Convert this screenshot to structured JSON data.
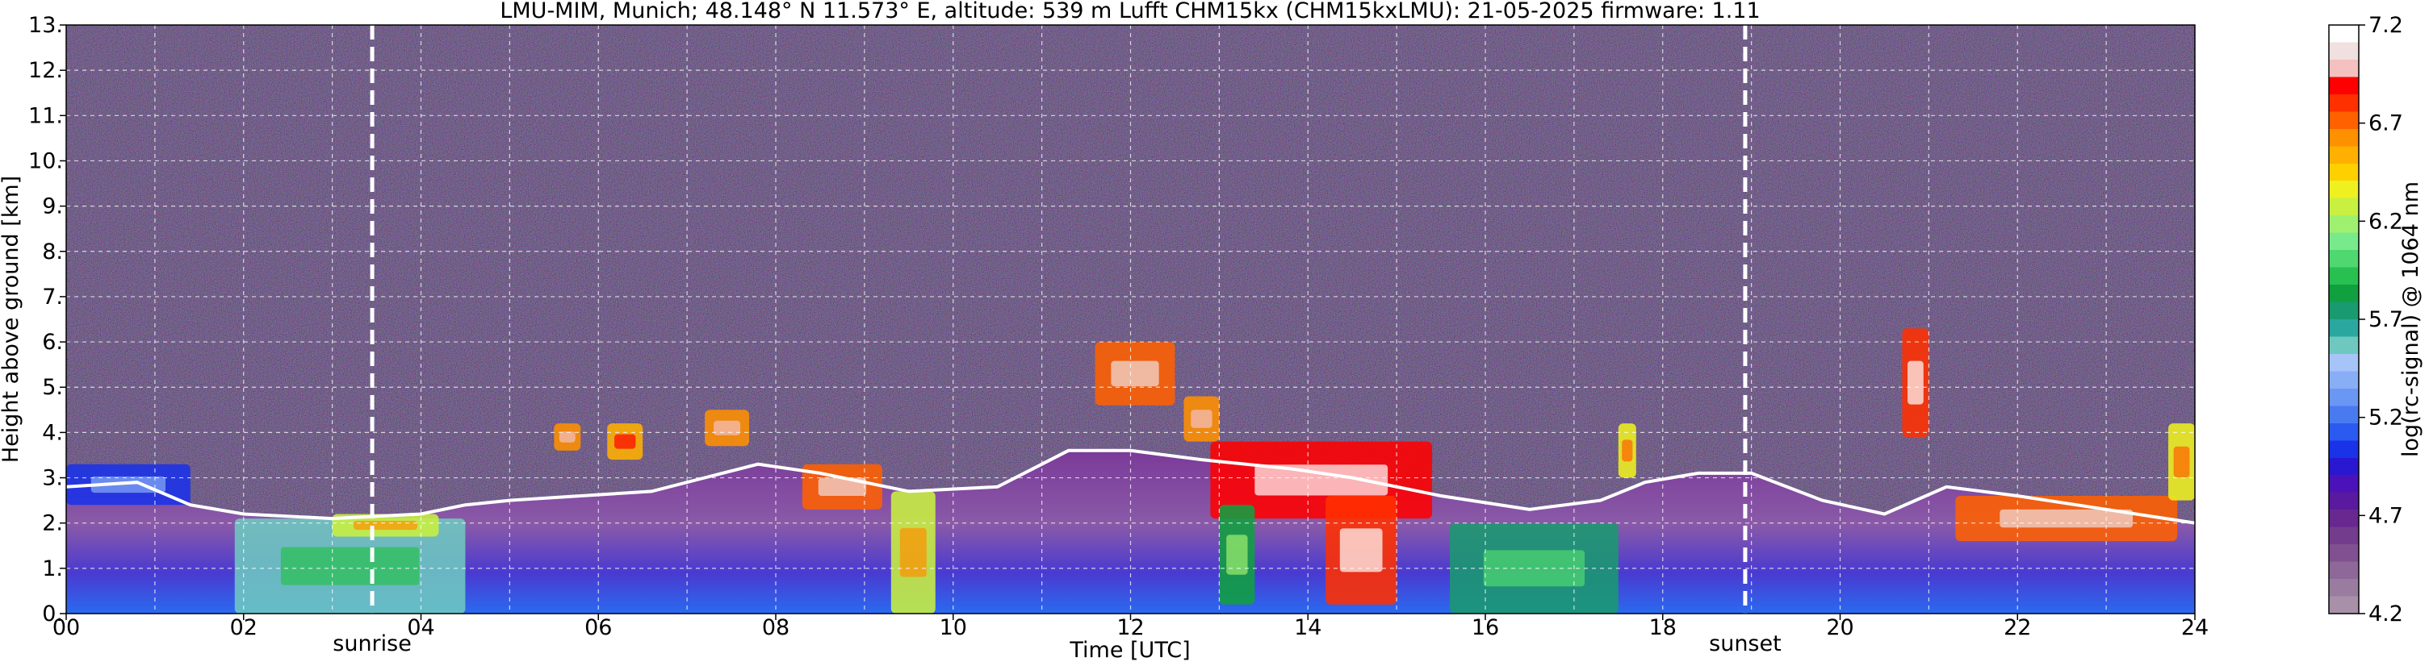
{
  "chart_data": {
    "type": "heatmap",
    "title": "LMU-MIM, Munich; 48.148° N 11.573° E, altitude: 539 m     Lufft CHM15kx (CHM15kxLMU): 21-05-2025     firmware: 1.11",
    "xlabel": "Time [UTC]",
    "ylabel": "Height above ground [km]",
    "xlim": [
      0,
      24
    ],
    "ylim": [
      0,
      13
    ],
    "x_ticks": [
      "00",
      "02",
      "04",
      "06",
      "08",
      "10",
      "12",
      "14",
      "16",
      "18",
      "20",
      "22",
      "24"
    ],
    "y_ticks": [
      "0.",
      "1.",
      "2.",
      "3.",
      "4.",
      "5.",
      "6.",
      "7.",
      "8.",
      "9.",
      "10.",
      "11.",
      "12.",
      "13."
    ],
    "grid": true,
    "colorbar": {
      "label": "log(rc-signal) @ 1064 nm",
      "range": [
        4.2,
        7.2
      ],
      "ticks": [
        "4.2",
        "4.7",
        "5.2",
        "5.7",
        "6.2",
        "6.7",
        "7.2"
      ],
      "colors": [
        "#a890a8",
        "#9a7ca0",
        "#8e6898",
        "#805090",
        "#743c8c",
        "#682890",
        "#5a1aa0",
        "#4a12b8",
        "#2a18d0",
        "#1a32e8",
        "#2a5af0",
        "#4a7af0",
        "#6a96f4",
        "#88aef6",
        "#a6c4f8",
        "#6ec8c0",
        "#2aa8a0",
        "#1a9a70",
        "#10a040",
        "#28c050",
        "#50d870",
        "#78ea8c",
        "#a0f070",
        "#c8f040",
        "#eef020",
        "#ffd000",
        "#ffb000",
        "#ff9000",
        "#ff6000",
        "#ff3000",
        "#ff0000",
        "#f4c0c0",
        "#f0e0e0",
        "#ffffff"
      ]
    },
    "markers": [
      {
        "label": "sunrise",
        "x": 3.45
      },
      {
        "label": "sunset",
        "x": 18.93
      }
    ],
    "cloud_base": [
      [
        0,
        2.8
      ],
      [
        0.8,
        2.9
      ],
      [
        1.4,
        2.4
      ],
      [
        2.0,
        2.2
      ],
      [
        3.0,
        2.1
      ],
      [
        4.0,
        2.2
      ],
      [
        4.5,
        2.4
      ],
      [
        5.0,
        2.5
      ],
      [
        5.8,
        2.6
      ],
      [
        6.6,
        2.7
      ],
      [
        7.2,
        3.0
      ],
      [
        7.8,
        3.3
      ],
      [
        8.5,
        3.1
      ],
      [
        9.5,
        2.7
      ],
      [
        10.5,
        2.8
      ],
      [
        11.3,
        3.6
      ],
      [
        12.0,
        3.6
      ],
      [
        12.8,
        3.4
      ],
      [
        13.8,
        3.2
      ],
      [
        14.5,
        3.0
      ],
      [
        15.5,
        2.6
      ],
      [
        16.5,
        2.3
      ],
      [
        17.3,
        2.5
      ],
      [
        17.8,
        2.9
      ],
      [
        18.4,
        3.1
      ],
      [
        19.0,
        3.1
      ],
      [
        19.8,
        2.5
      ],
      [
        20.5,
        2.2
      ],
      [
        21.2,
        2.8
      ],
      [
        22.0,
        2.6
      ],
      [
        23.0,
        2.3
      ],
      [
        24.0,
        2.0
      ]
    ],
    "features": [
      {
        "x": [
          0.0,
          1.4
        ],
        "base": 2.4,
        "top": 3.3,
        "level": 5.0
      },
      {
        "x": [
          1.9,
          4.5
        ],
        "base": 0.0,
        "top": 2.1,
        "level": 5.6
      },
      {
        "x": [
          3.0,
          4.2
        ],
        "base": 1.7,
        "top": 2.2,
        "level": 6.3
      },
      {
        "x": [
          5.5,
          5.8
        ],
        "base": 3.6,
        "top": 4.2,
        "level": 6.6
      },
      {
        "x": [
          6.1,
          6.5
        ],
        "base": 3.4,
        "top": 4.2,
        "level": 6.5
      },
      {
        "x": [
          7.2,
          7.7
        ],
        "base": 3.7,
        "top": 4.5,
        "level": 6.6
      },
      {
        "x": [
          8.3,
          9.2
        ],
        "base": 2.3,
        "top": 3.3,
        "level": 6.7
      },
      {
        "x": [
          9.3,
          9.8
        ],
        "base": 0.0,
        "top": 2.7,
        "level": 6.3
      },
      {
        "x": [
          11.6,
          12.5
        ],
        "base": 4.6,
        "top": 6.0,
        "level": 6.7
      },
      {
        "x": [
          12.6,
          13.0
        ],
        "base": 3.8,
        "top": 4.8,
        "level": 6.6
      },
      {
        "x": [
          12.9,
          15.4
        ],
        "base": 2.1,
        "top": 3.8,
        "level": 6.9
      },
      {
        "x": [
          13.0,
          13.4
        ],
        "base": 0.2,
        "top": 2.4,
        "level": 5.8
      },
      {
        "x": [
          14.2,
          15.0
        ],
        "base": 0.2,
        "top": 2.6,
        "level": 6.8
      },
      {
        "x": [
          15.6,
          17.5
        ],
        "base": 0.0,
        "top": 2.0,
        "level": 5.7
      },
      {
        "x": [
          17.5,
          17.7
        ],
        "base": 3.0,
        "top": 4.2,
        "level": 6.4
      },
      {
        "x": [
          20.7,
          21.0
        ],
        "base": 3.9,
        "top": 6.3,
        "level": 6.8
      },
      {
        "x": [
          21.3,
          23.8
        ],
        "base": 1.6,
        "top": 2.6,
        "level": 6.7
      },
      {
        "x": [
          23.7,
          24.0
        ],
        "base": 2.5,
        "top": 4.2,
        "level": 6.4
      }
    ]
  }
}
